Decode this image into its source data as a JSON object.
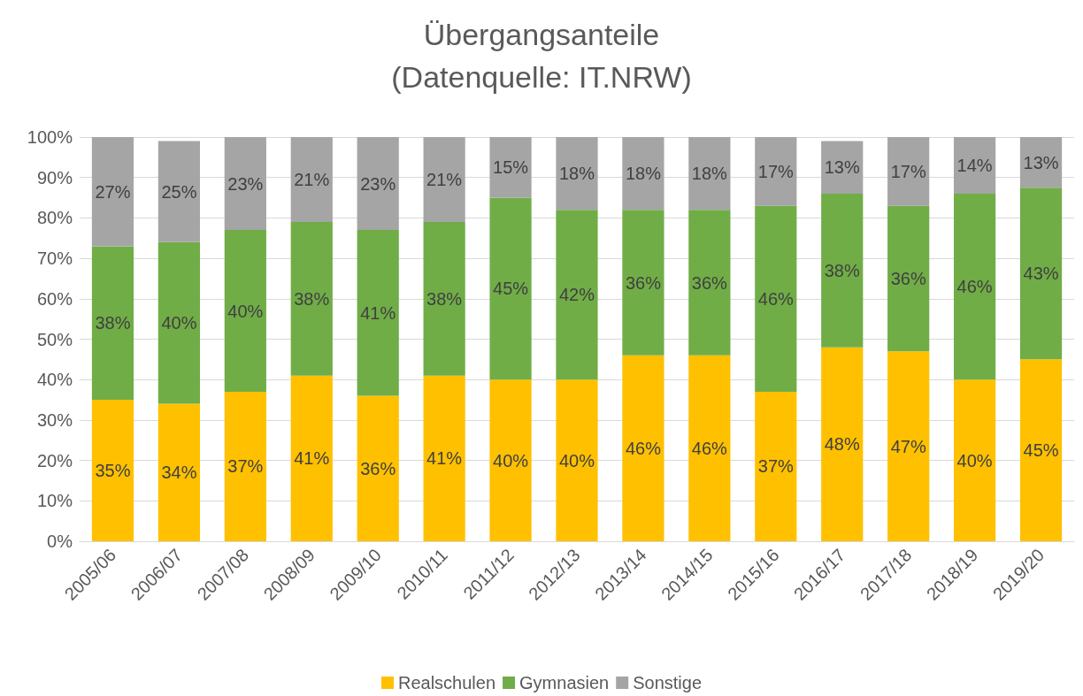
{
  "chart_data": {
    "type": "bar",
    "title": "Übergangsanteile\n(Datenquelle: IT.NRW)",
    "stacked": true,
    "categories": [
      "2005/06",
      "2006/07",
      "2007/08",
      "2008/09",
      "2009/10",
      "2010/11",
      "2011/12",
      "2012/13",
      "2013/14",
      "2014/15",
      "2015/16",
      "2016/17",
      "2017/18",
      "2018/19",
      "2019/20"
    ],
    "series": [
      {
        "name": "Realschulen",
        "color": "#ffc000",
        "values": [
          35,
          34,
          37,
          41,
          36,
          41,
          40,
          40,
          46,
          46,
          37,
          48,
          47,
          40,
          45
        ],
        "value_labels": [
          "35%",
          "34%",
          "37%",
          "41%",
          "36%",
          "41%",
          "40%",
          "40%",
          "46%",
          "46%",
          "37%",
          "48%",
          "47%",
          "40%",
          "45%"
        ]
      },
      {
        "name": "Gymnasien",
        "color": "#70ad47",
        "values": [
          38,
          40,
          40,
          38,
          41,
          38,
          45,
          42,
          36,
          36,
          46,
          38,
          36,
          46,
          42.5
        ],
        "value_labels": [
          "38%",
          "40%",
          "40%",
          "38%",
          "41%",
          "38%",
          "45%",
          "42%",
          "36%",
          "36%",
          "46%",
          "38%",
          "36%",
          "46%",
          "43%"
        ]
      },
      {
        "name": "Sonstige",
        "color": "#a5a5a5",
        "values": [
          27,
          25,
          23,
          21,
          23,
          21,
          15,
          18,
          18,
          18,
          17,
          13,
          17,
          14,
          12.5
        ],
        "value_labels": [
          "27%",
          "25%",
          "23%",
          "21%",
          "23%",
          "21%",
          "15%",
          "18%",
          "18%",
          "18%",
          "17%",
          "13%",
          "17%",
          "14%",
          "13%"
        ]
      }
    ],
    "ylim": [
      0,
      100
    ],
    "yticks": [
      {
        "value": 0,
        "label": "0%"
      },
      {
        "value": 10,
        "label": "10%"
      },
      {
        "value": 20,
        "label": "20%"
      },
      {
        "value": 30,
        "label": "30%"
      },
      {
        "value": 40,
        "label": "40%"
      },
      {
        "value": 50,
        "label": "50%"
      },
      {
        "value": 60,
        "label": "60%"
      },
      {
        "value": 70,
        "label": "70%"
      },
      {
        "value": 80,
        "label": "80%"
      },
      {
        "value": 90,
        "label": "90%"
      },
      {
        "value": 100,
        "label": "100%"
      }
    ],
    "grid": true,
    "legend": "bottom"
  }
}
